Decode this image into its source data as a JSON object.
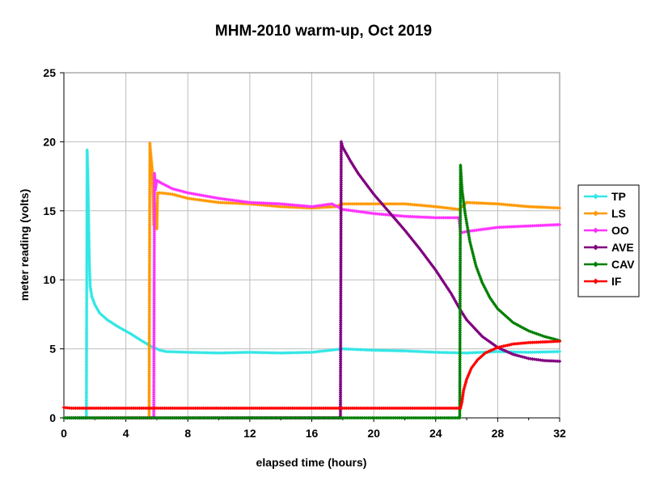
{
  "chart_data": {
    "type": "line",
    "title": "MHM-2010 warm-up, Oct 2019",
    "xlabel": "elapsed time (hours)",
    "ylabel": "meter reading (volts)",
    "xlim": [
      0,
      32
    ],
    "ylim": [
      0,
      25
    ],
    "x_ticks": [
      0,
      4,
      8,
      12,
      16,
      20,
      24,
      28,
      32
    ],
    "y_ticks": [
      0,
      5,
      10,
      15,
      20,
      25
    ],
    "x_tick_labels": [
      "0",
      "4",
      "8",
      "12",
      "16",
      "20",
      "24",
      "28",
      "32"
    ],
    "y_tick_labels": [
      "0",
      "5",
      "10",
      "15",
      "20",
      "25"
    ],
    "grid": true,
    "legend_position": "right",
    "series": [
      {
        "name": "TP",
        "color": "#33e6e6",
        "points": [
          [
            0,
            0
          ],
          [
            1.45,
            0
          ],
          [
            1.5,
            19.4
          ],
          [
            1.55,
            17.5
          ],
          [
            1.6,
            14
          ],
          [
            1.65,
            11
          ],
          [
            1.7,
            9.5
          ],
          [
            1.8,
            8.8
          ],
          [
            2,
            8.2
          ],
          [
            2.3,
            7.6
          ],
          [
            2.8,
            7.1
          ],
          [
            3.5,
            6.6
          ],
          [
            4.3,
            6.1
          ],
          [
            5,
            5.6
          ],
          [
            5.6,
            5.2
          ],
          [
            6.2,
            4.9
          ],
          [
            6.6,
            4.8
          ],
          [
            8,
            4.75
          ],
          [
            10,
            4.7
          ],
          [
            12,
            4.75
          ],
          [
            14,
            4.7
          ],
          [
            16,
            4.75
          ],
          [
            18,
            5.0
          ],
          [
            20,
            4.9
          ],
          [
            22,
            4.85
          ],
          [
            24,
            4.75
          ],
          [
            26,
            4.7
          ],
          [
            27,
            4.75
          ],
          [
            28,
            4.8
          ],
          [
            30,
            4.75
          ],
          [
            32,
            4.8
          ]
        ]
      },
      {
        "name": "LS",
        "color": "#ff9900",
        "points": [
          [
            0,
            0
          ],
          [
            5.5,
            0
          ],
          [
            5.55,
            19.9
          ],
          [
            5.6,
            19.2
          ],
          [
            5.7,
            18
          ],
          [
            5.75,
            16
          ],
          [
            5.8,
            14
          ],
          [
            5.85,
            13.8
          ],
          [
            5.9,
            15.5
          ],
          [
            5.95,
            14.2
          ],
          [
            6.0,
            13.7
          ],
          [
            6.05,
            16.3
          ],
          [
            6.2,
            16.3
          ],
          [
            7,
            16.2
          ],
          [
            8,
            15.9
          ],
          [
            10,
            15.6
          ],
          [
            12,
            15.5
          ],
          [
            14,
            15.3
          ],
          [
            16,
            15.2
          ],
          [
            17.5,
            15.3
          ],
          [
            18,
            15.5
          ],
          [
            20,
            15.5
          ],
          [
            22,
            15.5
          ],
          [
            24,
            15.3
          ],
          [
            25.5,
            15.1
          ],
          [
            26,
            15.6
          ],
          [
            28,
            15.5
          ],
          [
            30,
            15.3
          ],
          [
            32,
            15.2
          ]
        ]
      },
      {
        "name": "OO",
        "color": "#ff33ff",
        "points": [
          [
            0,
            0
          ],
          [
            5.8,
            0
          ],
          [
            5.85,
            17.7
          ],
          [
            5.9,
            16.5
          ],
          [
            6.0,
            17.2
          ],
          [
            6.3,
            17.0
          ],
          [
            7,
            16.6
          ],
          [
            8,
            16.3
          ],
          [
            10,
            15.9
          ],
          [
            12,
            15.6
          ],
          [
            14,
            15.5
          ],
          [
            16,
            15.3
          ],
          [
            17.3,
            15.5
          ],
          [
            18,
            15.1
          ],
          [
            20,
            14.8
          ],
          [
            22,
            14.6
          ],
          [
            24,
            14.5
          ],
          [
            25.5,
            14.5
          ],
          [
            25.6,
            13.4
          ],
          [
            26,
            13.5
          ],
          [
            28,
            13.8
          ],
          [
            30,
            13.9
          ],
          [
            32,
            14.0
          ]
        ]
      },
      {
        "name": "AVE",
        "color": "#800080",
        "points": [
          [
            0,
            0
          ],
          [
            17.85,
            0
          ],
          [
            17.9,
            20
          ],
          [
            18,
            19.6
          ],
          [
            18.5,
            18.6
          ],
          [
            19,
            17.7
          ],
          [
            20,
            16.2
          ],
          [
            21,
            14.9
          ],
          [
            22,
            13.6
          ],
          [
            23,
            12.2
          ],
          [
            24,
            10.7
          ],
          [
            25,
            9.0
          ],
          [
            25.6,
            7.8
          ],
          [
            26,
            7.1
          ],
          [
            27,
            5.9
          ],
          [
            28,
            5.1
          ],
          [
            29,
            4.6
          ],
          [
            30,
            4.3
          ],
          [
            31,
            4.15
          ],
          [
            32,
            4.1
          ]
        ]
      },
      {
        "name": "CAV",
        "color": "#008000",
        "points": [
          [
            0,
            0
          ],
          [
            25.55,
            0
          ],
          [
            25.6,
            18.3
          ],
          [
            25.7,
            16.5
          ],
          [
            25.9,
            14.8
          ],
          [
            26.2,
            12.8
          ],
          [
            26.6,
            11.0
          ],
          [
            27,
            9.8
          ],
          [
            27.5,
            8.7
          ],
          [
            28,
            7.9
          ],
          [
            29,
            6.9
          ],
          [
            30,
            6.3
          ],
          [
            31,
            5.9
          ],
          [
            32,
            5.6
          ]
        ]
      },
      {
        "name": "IF",
        "color": "#ff0000",
        "points": [
          [
            0,
            0.75
          ],
          [
            0.5,
            0.7
          ],
          [
            2,
            0.7
          ],
          [
            6,
            0.7
          ],
          [
            10,
            0.7
          ],
          [
            14,
            0.7
          ],
          [
            18,
            0.7
          ],
          [
            22,
            0.7
          ],
          [
            25.6,
            0.7
          ],
          [
            25.7,
            1.2
          ],
          [
            25.8,
            2.0
          ],
          [
            26,
            2.8
          ],
          [
            26.3,
            3.6
          ],
          [
            26.7,
            4.2
          ],
          [
            27.2,
            4.7
          ],
          [
            28,
            5.1
          ],
          [
            29,
            5.35
          ],
          [
            30,
            5.45
          ],
          [
            31,
            5.5
          ],
          [
            32,
            5.55
          ]
        ]
      }
    ]
  }
}
